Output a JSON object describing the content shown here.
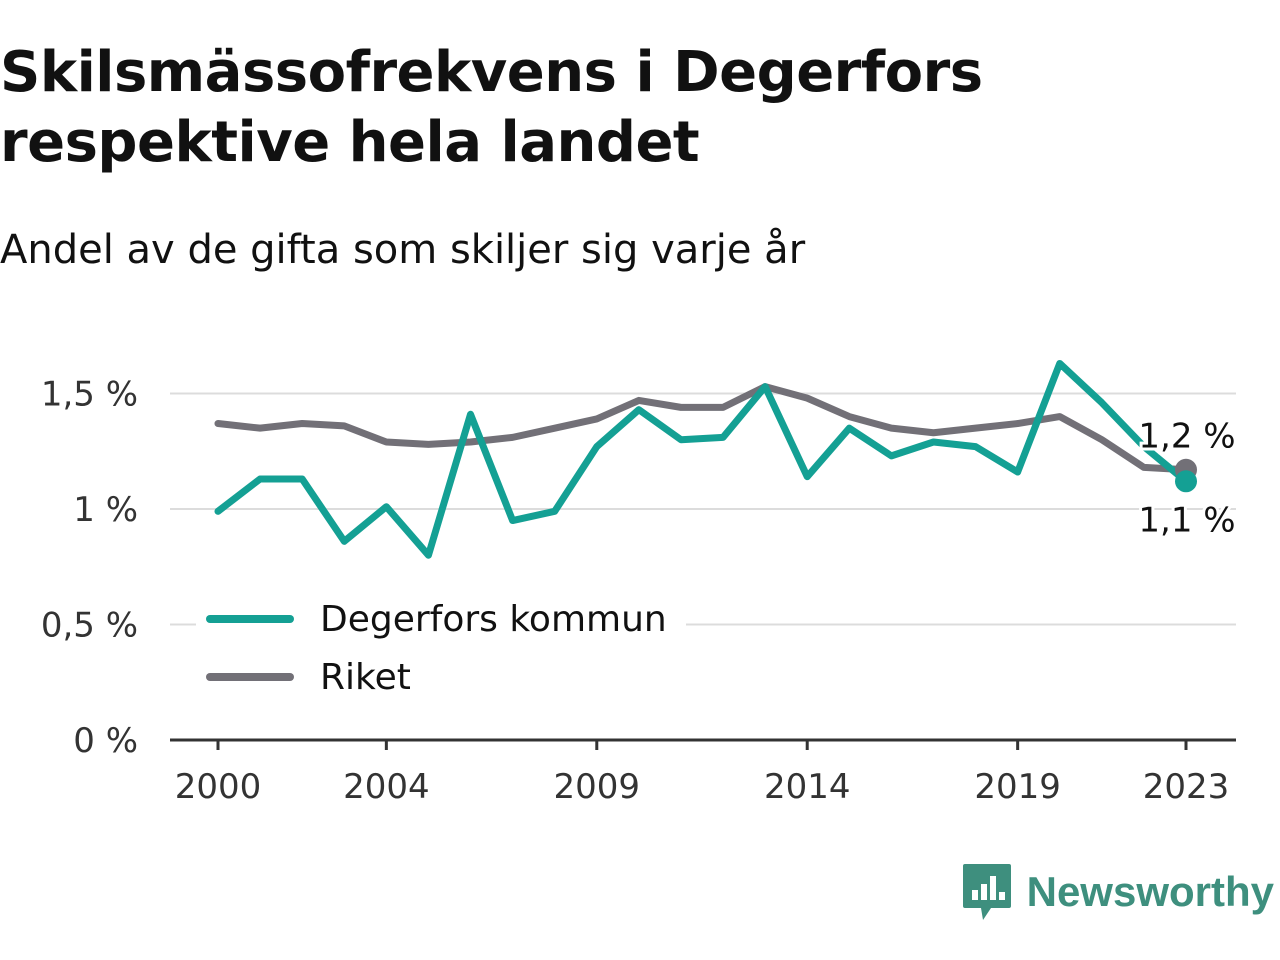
{
  "header": {
    "title": "Skilsmässofrekvens i Degerfors respektive hela landet",
    "subtitle": "Andel av de gifta som skiljer sig varje år"
  },
  "brand": {
    "name": "Newsworthy",
    "icon": "newsworthy-logo-icon",
    "color": "#3e8f7e"
  },
  "chart_data": {
    "type": "line",
    "x": [
      2000,
      2001,
      2002,
      2003,
      2004,
      2005,
      2006,
      2007,
      2008,
      2009,
      2010,
      2011,
      2012,
      2013,
      2014,
      2015,
      2016,
      2017,
      2018,
      2019,
      2020,
      2021,
      2022,
      2023
    ],
    "x_ticks": [
      2000,
      2004,
      2009,
      2014,
      2019,
      2023
    ],
    "x_tick_labels": [
      "2000",
      "2004",
      "2009",
      "2014",
      "2019",
      "2023"
    ],
    "y_ticks": [
      0,
      0.5,
      1,
      1.5
    ],
    "y_tick_labels": [
      "0 %",
      "0,5 %",
      "1 %",
      "1,5 %"
    ],
    "ylim": [
      0,
      1.6
    ],
    "grid": true,
    "legend_position": "bottom-left",
    "series": [
      {
        "name": "Degerfors kommun",
        "color": "#14a094",
        "values": [
          0.99,
          1.13,
          1.13,
          0.86,
          1.01,
          0.8,
          1.41,
          0.95,
          0.99,
          1.27,
          1.43,
          1.3,
          1.31,
          1.53,
          1.14,
          1.35,
          1.23,
          1.29,
          1.27,
          1.16,
          1.63,
          1.46,
          1.27,
          1.12
        ],
        "end_label": "1,1 %"
      },
      {
        "name": "Riket",
        "color": "#727077",
        "values": [
          1.37,
          1.35,
          1.37,
          1.36,
          1.29,
          1.28,
          1.29,
          1.31,
          1.35,
          1.39,
          1.47,
          1.44,
          1.44,
          1.53,
          1.48,
          1.4,
          1.35,
          1.33,
          1.35,
          1.37,
          1.4,
          1.3,
          1.18,
          1.17
        ],
        "end_label": "1,2 %"
      }
    ]
  }
}
